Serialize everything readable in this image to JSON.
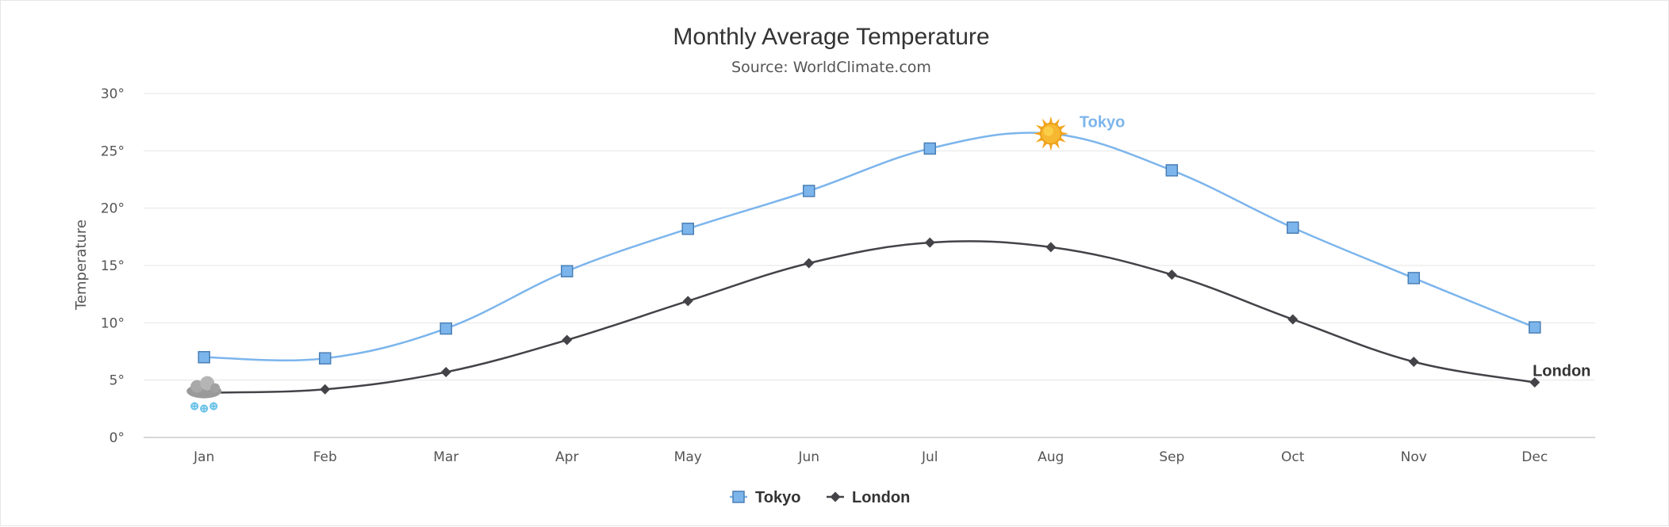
{
  "chart_data": {
    "type": "line",
    "title": "Monthly Average Temperature",
    "subtitle": "Source: WorldClimate.com",
    "xlabel": "",
    "ylabel": "Temperature",
    "categories": [
      "Jan",
      "Feb",
      "Mar",
      "Apr",
      "May",
      "Jun",
      "Jul",
      "Aug",
      "Sep",
      "Oct",
      "Nov",
      "Dec"
    ],
    "ylim": [
      0,
      30
    ],
    "yticks": [
      0,
      5,
      10,
      15,
      20,
      25,
      30
    ],
    "ytick_suffix": "°",
    "grid": true,
    "legend_position": "bottom-center",
    "series": [
      {
        "name": "Tokyo",
        "color": "#7cb5ec",
        "marker": "square",
        "values": [
          7.0,
          6.9,
          9.5,
          14.5,
          18.2,
          21.5,
          25.2,
          26.5,
          23.3,
          18.3,
          13.9,
          9.6
        ],
        "special_markers": [
          {
            "index": 7,
            "icon": "sun-icon"
          }
        ],
        "end_label": "Tokyo",
        "end_label_index": 7
      },
      {
        "name": "London",
        "color": "#434348",
        "marker": "diamond",
        "values": [
          3.9,
          4.2,
          5.7,
          8.5,
          11.9,
          15.2,
          17.0,
          16.6,
          14.2,
          10.3,
          6.6,
          4.8
        ],
        "special_markers": [
          {
            "index": 0,
            "icon": "snow-cloud-icon"
          }
        ],
        "end_label": "London",
        "end_label_index": 11
      }
    ]
  }
}
